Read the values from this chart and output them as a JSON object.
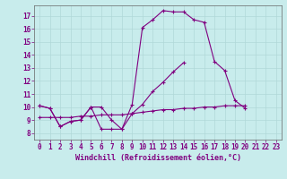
{
  "xlabel": "Windchill (Refroidissement éolien,°C)",
  "ylabel": "",
  "background_color": "#c8ecec",
  "grid_color": "#b0d8d8",
  "line_color": "#800080",
  "xlim": [
    -0.5,
    23.5
  ],
  "ylim": [
    7.5,
    17.8
  ],
  "xticks": [
    0,
    1,
    2,
    3,
    4,
    5,
    6,
    7,
    8,
    9,
    10,
    11,
    12,
    13,
    14,
    15,
    16,
    17,
    18,
    19,
    20,
    21,
    22,
    23
  ],
  "yticks": [
    8,
    9,
    10,
    11,
    12,
    13,
    14,
    15,
    16,
    17
  ],
  "line1_y": [
    10.1,
    9.9,
    8.5,
    8.9,
    9.0,
    10.0,
    8.3,
    8.3,
    8.3,
    10.2,
    16.1,
    16.7,
    17.4,
    17.3,
    17.3,
    16.7,
    16.5,
    13.5,
    12.8,
    10.5,
    9.9,
    null,
    null,
    null
  ],
  "line2_y": [
    10.1,
    9.9,
    8.5,
    8.9,
    9.0,
    10.0,
    10.0,
    9.0,
    8.3,
    9.5,
    10.2,
    11.2,
    11.9,
    12.7,
    13.4,
    null,
    null,
    null,
    null,
    null,
    null,
    null,
    null,
    null
  ],
  "line3_y": [
    9.2,
    9.2,
    9.2,
    9.2,
    9.3,
    9.3,
    9.4,
    9.4,
    9.4,
    9.5,
    9.6,
    9.7,
    9.8,
    9.8,
    9.9,
    9.9,
    10.0,
    10.0,
    10.1,
    10.1,
    10.1,
    null,
    null,
    null
  ],
  "marker": "+",
  "markersize": 3,
  "markeredgewidth": 0.8,
  "linewidth": 0.8,
  "xlabel_fontsize": 6,
  "tick_fontsize": 5.5
}
